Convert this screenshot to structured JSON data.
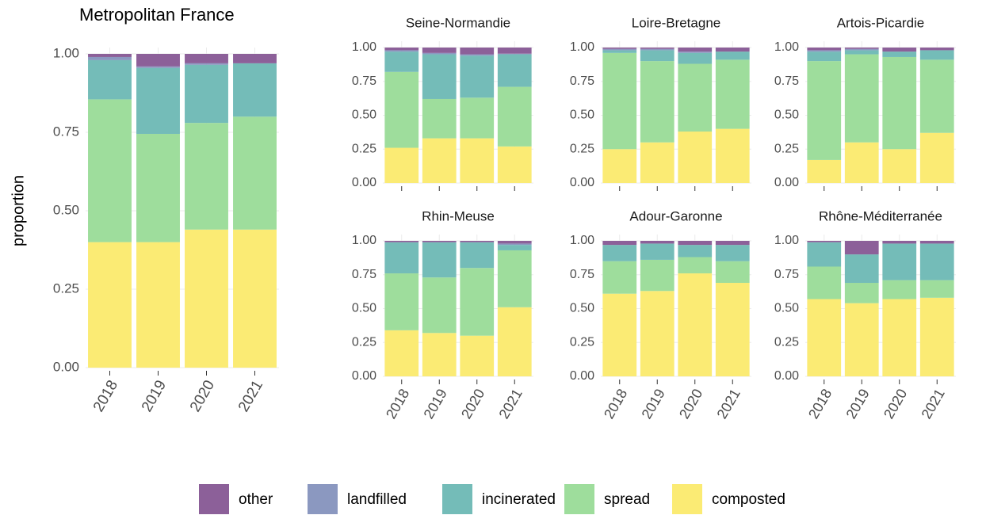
{
  "chart_data": [
    {
      "type": "bar",
      "stacked": true,
      "title": "Metropolitan France",
      "ylabel": "proportion",
      "legend": "bottom",
      "categories": [
        "2018",
        "2019",
        "2020",
        "2021"
      ],
      "series": [
        {
          "name": "other",
          "color": "#8c6099",
          "values": [
            0.01,
            0.04,
            0.03,
            0.03
          ]
        },
        {
          "name": "landfilled",
          "color": "#8b98c0",
          "values": [
            0.01,
            0.005,
            0.005,
            0.0
          ]
        },
        {
          "name": "incinerated",
          "color": "#74bcb8",
          "values": [
            0.125,
            0.21,
            0.185,
            0.17
          ]
        },
        {
          "name": "spread",
          "color": "#9edd9c",
          "values": [
            0.455,
            0.345,
            0.34,
            0.36
          ]
        },
        {
          "name": "composted",
          "color": "#fbeb74",
          "values": [
            0.4,
            0.4,
            0.44,
            0.44
          ]
        }
      ],
      "ylim": [
        0,
        1
      ],
      "yticks": [
        {
          "value": 0,
          "label": "0.00"
        },
        {
          "value": 0.25,
          "label": "0.25"
        },
        {
          "value": 0.5,
          "label": "0.50"
        },
        {
          "value": 0.75,
          "label": "0.75"
        },
        {
          "value": 1,
          "label": "1.00"
        }
      ]
    },
    {
      "type": "bar",
      "stacked": true,
      "title": "Seine-Normandie",
      "series": [
        {
          "values": [
            0.02,
            0.04,
            0.05,
            0.045
          ]
        },
        {
          "values": [
            0.01,
            0.01,
            0.01,
            0.005
          ]
        },
        {
          "values": [
            0.15,
            0.33,
            0.31,
            0.24
          ]
        },
        {
          "values": [
            0.56,
            0.29,
            0.3,
            0.44
          ]
        },
        {
          "values": [
            0.26,
            0.33,
            0.33,
            0.27
          ]
        }
      ],
      "ylim": [
        0,
        1
      ],
      "yticks": [
        {
          "value": 0,
          "label": "0.00"
        },
        {
          "value": 0.25,
          "label": "0.25"
        },
        {
          "value": 0.5,
          "label": "0.50"
        },
        {
          "value": 0.75,
          "label": "0.75"
        },
        {
          "value": 1,
          "label": "1.00"
        }
      ]
    },
    {
      "type": "bar",
      "stacked": true,
      "title": "Loire-Bretagne",
      "series": [
        {
          "values": [
            0.01,
            0.01,
            0.03,
            0.03
          ]
        },
        {
          "values": [
            0.01,
            0.01,
            0.01,
            0.0
          ]
        },
        {
          "values": [
            0.02,
            0.08,
            0.08,
            0.06
          ]
        },
        {
          "values": [
            0.71,
            0.6,
            0.5,
            0.51
          ]
        },
        {
          "values": [
            0.25,
            0.3,
            0.38,
            0.4
          ]
        }
      ],
      "ylim": [
        0,
        1
      ],
      "yticks": [
        {
          "value": 0,
          "label": "0.00"
        },
        {
          "value": 0.25,
          "label": "0.25"
        },
        {
          "value": 0.5,
          "label": "0.50"
        },
        {
          "value": 0.75,
          "label": "0.75"
        },
        {
          "value": 1,
          "label": "1.00"
        }
      ]
    },
    {
      "type": "bar",
      "stacked": true,
      "title": "Artois-Picardie",
      "series": [
        {
          "values": [
            0.02,
            0.01,
            0.03,
            0.02
          ]
        },
        {
          "values": [
            0.01,
            0.01,
            0.0,
            0.0
          ]
        },
        {
          "values": [
            0.07,
            0.03,
            0.04,
            0.07
          ]
        },
        {
          "values": [
            0.73,
            0.65,
            0.68,
            0.54
          ]
        },
        {
          "values": [
            0.17,
            0.3,
            0.25,
            0.37
          ]
        }
      ],
      "ylim": [
        0,
        1
      ],
      "yticks": [
        {
          "value": 0,
          "label": "0.00"
        },
        {
          "value": 0.25,
          "label": "0.25"
        },
        {
          "value": 0.5,
          "label": "0.50"
        },
        {
          "value": 0.75,
          "label": "0.75"
        },
        {
          "value": 1,
          "label": "1.00"
        }
      ]
    },
    {
      "type": "bar",
      "stacked": true,
      "title": "Rhin-Meuse",
      "categories": [
        "2018",
        "2019",
        "2020",
        "2021"
      ],
      "series": [
        {
          "values": [
            0.01,
            0.01,
            0.01,
            0.02
          ]
        },
        {
          "values": [
            0.0,
            0.0,
            0.0,
            0.01
          ]
        },
        {
          "values": [
            0.23,
            0.26,
            0.19,
            0.04
          ]
        },
        {
          "values": [
            0.42,
            0.41,
            0.5,
            0.42
          ]
        },
        {
          "values": [
            0.34,
            0.32,
            0.3,
            0.51
          ]
        }
      ],
      "ylim": [
        0,
        1
      ],
      "yticks": [
        {
          "value": 0,
          "label": "0.00"
        },
        {
          "value": 0.25,
          "label": "0.25"
        },
        {
          "value": 0.5,
          "label": "0.50"
        },
        {
          "value": 0.75,
          "label": "0.75"
        },
        {
          "value": 1,
          "label": "1.00"
        }
      ]
    },
    {
      "type": "bar",
      "stacked": true,
      "title": "Adour-Garonne",
      "categories": [
        "2018",
        "2019",
        "2020",
        "2021"
      ],
      "series": [
        {
          "values": [
            0.03,
            0.02,
            0.03,
            0.03
          ]
        },
        {
          "values": [
            0.0,
            0.0,
            0.0,
            0.0
          ]
        },
        {
          "values": [
            0.12,
            0.12,
            0.09,
            0.12
          ]
        },
        {
          "values": [
            0.24,
            0.23,
            0.12,
            0.16
          ]
        },
        {
          "values": [
            0.61,
            0.63,
            0.76,
            0.69
          ]
        }
      ],
      "ylim": [
        0,
        1
      ],
      "yticks": [
        {
          "value": 0,
          "label": "0.00"
        },
        {
          "value": 0.25,
          "label": "0.25"
        },
        {
          "value": 0.5,
          "label": "0.50"
        },
        {
          "value": 0.75,
          "label": "0.75"
        },
        {
          "value": 1,
          "label": "1.00"
        }
      ]
    },
    {
      "type": "bar",
      "stacked": true,
      "title": "Rhône-Méditerranée",
      "categories": [
        "2018",
        "2019",
        "2020",
        "2021"
      ],
      "series": [
        {
          "values": [
            0.01,
            0.1,
            0.02,
            0.02
          ]
        },
        {
          "values": [
            0.0,
            0.0,
            0.0,
            0.0
          ]
        },
        {
          "values": [
            0.18,
            0.21,
            0.27,
            0.27
          ]
        },
        {
          "values": [
            0.24,
            0.15,
            0.14,
            0.13
          ]
        },
        {
          "values": [
            0.57,
            0.54,
            0.57,
            0.58
          ]
        }
      ],
      "ylim": [
        0,
        1
      ],
      "yticks": [
        {
          "value": 0,
          "label": "0.00"
        },
        {
          "value": 0.25,
          "label": "0.25"
        },
        {
          "value": 0.5,
          "label": "0.50"
        },
        {
          "value": 0.75,
          "label": "0.75"
        },
        {
          "value": 1,
          "label": "1.00"
        }
      ]
    }
  ]
}
